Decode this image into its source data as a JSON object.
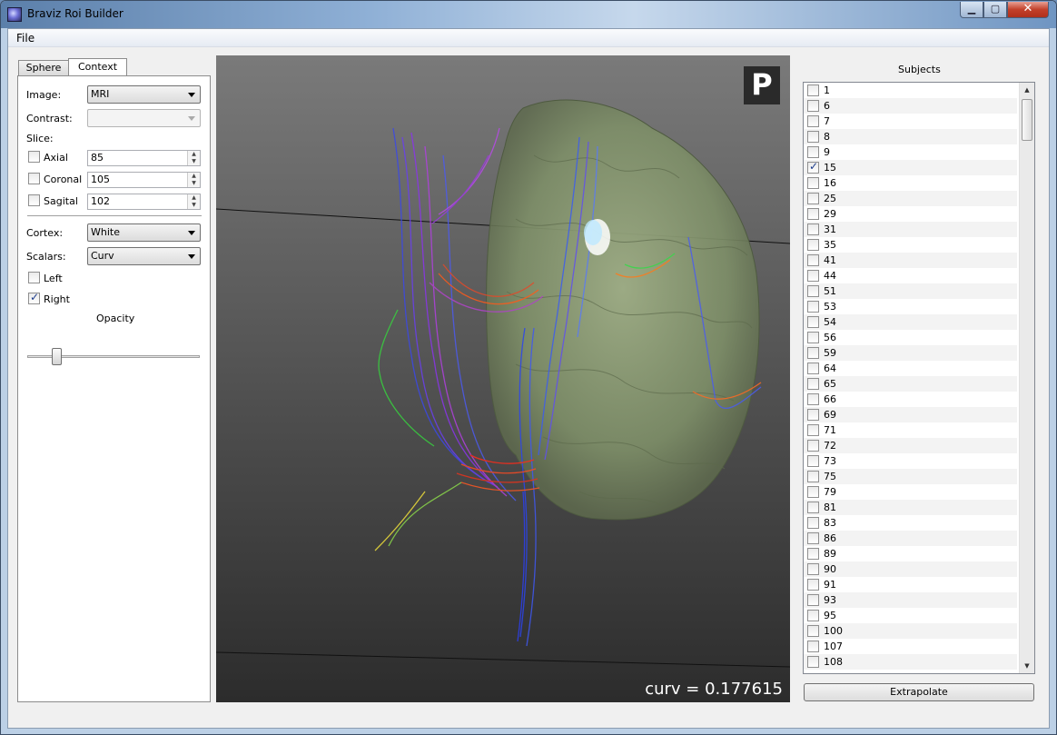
{
  "window": {
    "title": "Braviz Roi Builder",
    "min_glyph": "▁",
    "max_glyph": "▢",
    "close_glyph": "✕"
  },
  "menu": {
    "file": "File"
  },
  "tabs": [
    {
      "label": "Sphere",
      "active": false
    },
    {
      "label": "Context",
      "active": true
    }
  ],
  "context": {
    "image_label": "Image:",
    "image_value": "MRI",
    "contrast_label": "Contrast:",
    "contrast_value": "",
    "slice_label": "Slice:",
    "axial": {
      "label": "Axial",
      "checked": false,
      "value": "85"
    },
    "coronal": {
      "label": "Coronal",
      "checked": false,
      "value": "105"
    },
    "sagital": {
      "label": "Sagital",
      "checked": false,
      "value": "102"
    },
    "cortex_label": "Cortex:",
    "cortex_value": "White",
    "scalars_label": "Scalars:",
    "scalars_value": "Curv",
    "left": {
      "label": "Left",
      "checked": false
    },
    "right": {
      "label": "Right",
      "checked": true
    },
    "opacity_label": "Opacity",
    "opacity_fraction": 0.15
  },
  "view": {
    "badge": "P",
    "readout": "curv = 0.177615",
    "background_top": "#7a7a7a",
    "background_bottom": "#2c2c2c"
  },
  "subjects": {
    "title": "Subjects",
    "items": [
      {
        "id": "1",
        "checked": false
      },
      {
        "id": "6",
        "checked": false
      },
      {
        "id": "7",
        "checked": false
      },
      {
        "id": "8",
        "checked": false
      },
      {
        "id": "9",
        "checked": false
      },
      {
        "id": "15",
        "checked": true
      },
      {
        "id": "16",
        "checked": false
      },
      {
        "id": "25",
        "checked": false
      },
      {
        "id": "29",
        "checked": false
      },
      {
        "id": "31",
        "checked": false
      },
      {
        "id": "35",
        "checked": false
      },
      {
        "id": "41",
        "checked": false
      },
      {
        "id": "44",
        "checked": false
      },
      {
        "id": "51",
        "checked": false
      },
      {
        "id": "53",
        "checked": false
      },
      {
        "id": "54",
        "checked": false
      },
      {
        "id": "56",
        "checked": false
      },
      {
        "id": "59",
        "checked": false
      },
      {
        "id": "64",
        "checked": false
      },
      {
        "id": "65",
        "checked": false
      },
      {
        "id": "66",
        "checked": false
      },
      {
        "id": "69",
        "checked": false
      },
      {
        "id": "71",
        "checked": false
      },
      {
        "id": "72",
        "checked": false
      },
      {
        "id": "73",
        "checked": false
      },
      {
        "id": "75",
        "checked": false
      },
      {
        "id": "79",
        "checked": false
      },
      {
        "id": "81",
        "checked": false
      },
      {
        "id": "83",
        "checked": false
      },
      {
        "id": "86",
        "checked": false
      },
      {
        "id": "89",
        "checked": false
      },
      {
        "id": "90",
        "checked": false
      },
      {
        "id": "91",
        "checked": false
      },
      {
        "id": "93",
        "checked": false
      },
      {
        "id": "95",
        "checked": false
      },
      {
        "id": "100",
        "checked": false
      },
      {
        "id": "107",
        "checked": false
      },
      {
        "id": "108",
        "checked": false
      }
    ]
  },
  "extrapolate_button": "Extrapolate"
}
